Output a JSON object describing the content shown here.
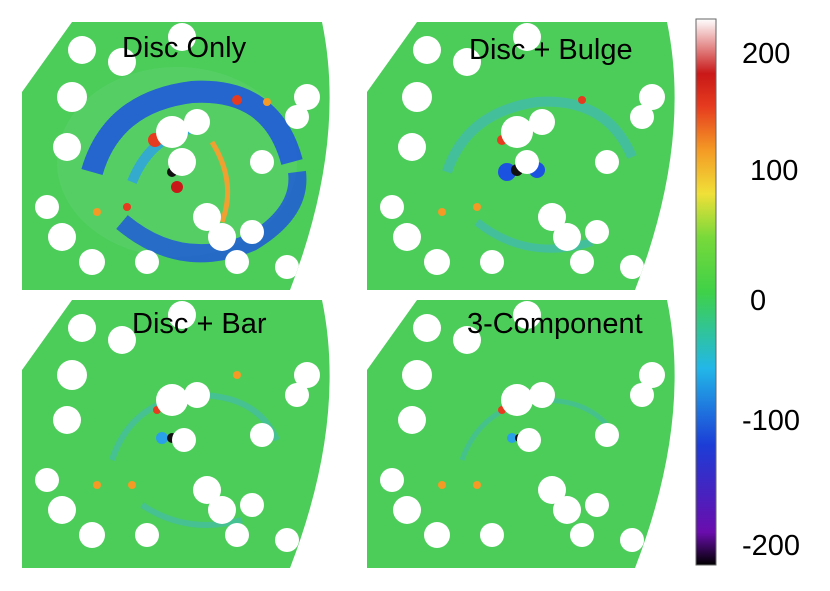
{
  "panels": [
    {
      "title": "Disc Only",
      "variant": "disc-only"
    },
    {
      "title": "Disc + Bulge",
      "variant": "disc-bulge"
    },
    {
      "title": "Disc + Bar",
      "variant": "disc-bar"
    },
    {
      "title": "3-Component",
      "variant": "three-component"
    }
  ],
  "colorbar": {
    "ticks": [
      "200",
      "100",
      "0",
      "-100",
      "-200"
    ],
    "range": [
      -230,
      230
    ],
    "colors": [
      "#000000",
      "#6a0dad",
      "#1c3dd6",
      "#22b7e8",
      "#3fd148",
      "#78d93a",
      "#f0e038",
      "#f49a25",
      "#e63b1f",
      "#c91818",
      "#ffffff"
    ]
  },
  "colors": {
    "residual_background": "#4ccd5a",
    "mask": "#ffffff"
  }
}
